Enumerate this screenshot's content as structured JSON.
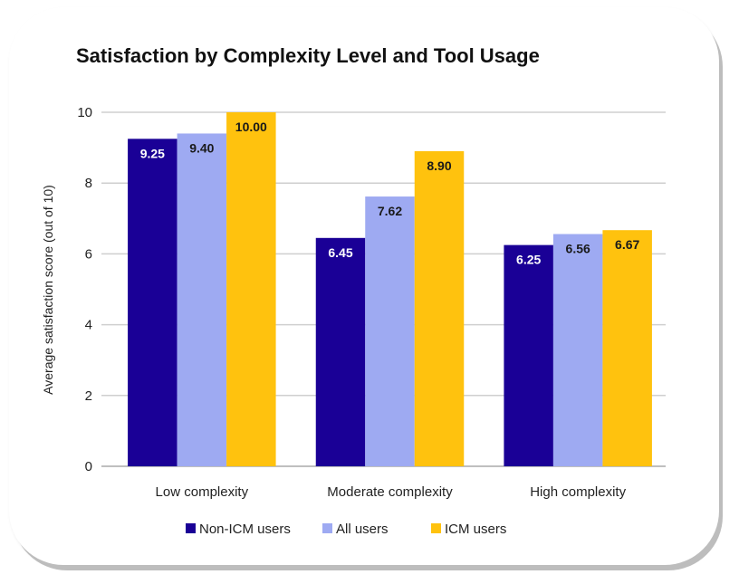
{
  "chart_data": {
    "type": "bar",
    "title": "Satisfaction by Complexity Level and Tool Usage",
    "xlabel": "",
    "ylabel": "Average satisfaction score (out of 10)",
    "ylim": [
      0,
      10
    ],
    "yticks": [
      0,
      2,
      4,
      6,
      8,
      10
    ],
    "grid": true,
    "legend_position": "bottom",
    "categories": [
      "Low complexity",
      "Moderate complexity",
      "High complexity"
    ],
    "series": [
      {
        "name": "Non-ICM users",
        "color": "#1a0096",
        "label_color": "#ffffff",
        "values": [
          9.25,
          6.45,
          6.25
        ],
        "labels": [
          "9.25",
          "6.45",
          "6.25"
        ]
      },
      {
        "name": "All users",
        "color": "#9eaaf2",
        "label_color": "#1a1a1a",
        "values": [
          9.4,
          7.62,
          6.56
        ],
        "labels": [
          "9.40",
          "7.62",
          "6.56"
        ]
      },
      {
        "name": "ICM users",
        "color": "#ffc20e",
        "label_color": "#1a1a1a",
        "values": [
          10.0,
          8.9,
          6.67
        ],
        "labels": [
          "10.00",
          "8.90",
          "6.67"
        ]
      }
    ]
  }
}
